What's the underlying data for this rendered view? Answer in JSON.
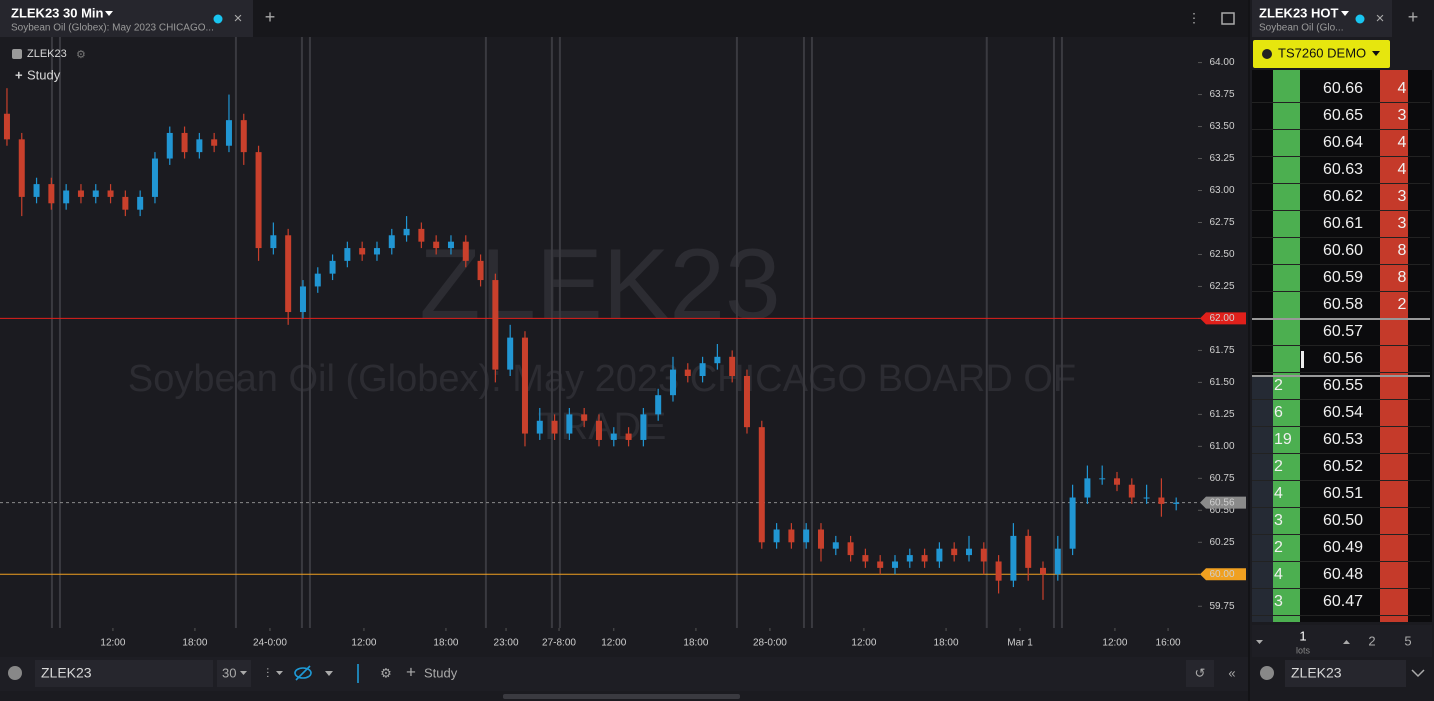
{
  "left_tab": {
    "title": "ZLEK23 30 Min",
    "subtitle": "Soybean Oil (Globex): May 2023 CHICAGO..."
  },
  "chart_data": {
    "type": "candlestick",
    "symbol": "ZLEK23",
    "study": "Study",
    "watermark_symbol": "ZLEK23",
    "watermark_name": [
      "Soybean Oil (Globex): May 2023 CHICAGO BOARD OF",
      "TRADE"
    ],
    "up_color": "#2196d3",
    "down_color": "#c9402c",
    "xlim": [
      -0.47,
      80.27
    ],
    "ylim": [
      59.58,
      64.2
    ],
    "yticks": [
      {
        "value": 64,
        "label": "64.00"
      },
      {
        "value": 63.75,
        "label": "63.75"
      },
      {
        "value": 63.5,
        "label": "63.50"
      },
      {
        "value": 63.25,
        "label": "63.25"
      },
      {
        "value": 63,
        "label": "63.00"
      },
      {
        "value": 62.75,
        "label": "62.75"
      },
      {
        "value": 62.5,
        "label": "62.50"
      },
      {
        "value": 62.25,
        "label": "62.25"
      },
      {
        "value": 62,
        "label": "62.00"
      },
      {
        "value": 61.75,
        "label": "61.75"
      },
      {
        "value": 61.5,
        "label": "61.50"
      },
      {
        "value": 61.25,
        "label": "61.25"
      },
      {
        "value": 61,
        "label": "61.00"
      },
      {
        "value": 60.75,
        "label": "60.75"
      },
      {
        "value": 60.5,
        "label": "60.50"
      },
      {
        "value": 60.25,
        "label": "60.25"
      },
      {
        "value": 60,
        "label": "60.00"
      },
      {
        "value": 59.75,
        "label": "59.75"
      }
    ],
    "xticks": [
      {
        "value": 7.16,
        "label": "12:00"
      },
      {
        "value": 12.7,
        "label": "18:00"
      },
      {
        "value": 17.77,
        "label": "24-0:00"
      },
      {
        "value": 24.12,
        "label": "12:00"
      },
      {
        "value": 29.66,
        "label": "18:00"
      },
      {
        "value": 33.72,
        "label": "23:00"
      },
      {
        "value": 37.3,
        "label": "27-8:00"
      },
      {
        "value": 41.0,
        "label": "12:00"
      },
      {
        "value": 46.55,
        "label": "18:00"
      },
      {
        "value": 51.55,
        "label": "28-0:00"
      },
      {
        "value": 57.9,
        "label": "12:00"
      },
      {
        "value": 63.45,
        "label": "18:00"
      },
      {
        "value": 68.45,
        "label": "Mar 1"
      },
      {
        "value": 74.86,
        "label": "12:00"
      },
      {
        "value": 78.45,
        "label": "16:00"
      }
    ],
    "session_lines": [
      3.04,
      3.58,
      15.47,
      19.93,
      20.47,
      32.36,
      36.82,
      37.36,
      49.32,
      53.85,
      54.39,
      66.2,
      70.74,
      71.28
    ],
    "levels": [
      {
        "value": 62,
        "label": "62.00",
        "color": "#e0201b"
      },
      {
        "value": 60,
        "label": "60.00",
        "color": "#f0a020"
      },
      {
        "value": 60.56,
        "label": "60.56",
        "color": "#8a8a8a"
      }
    ],
    "ohlc": [
      [
        63.6,
        63.8,
        63.35,
        63.4
      ],
      [
        63.4,
        63.45,
        62.8,
        62.95
      ],
      [
        62.95,
        63.1,
        62.9,
        63.05
      ],
      [
        63.05,
        63.1,
        62.85,
        62.9
      ],
      [
        62.9,
        63.05,
        62.85,
        63.0
      ],
      [
        63.0,
        63.05,
        62.9,
        62.95
      ],
      [
        62.95,
        63.05,
        62.9,
        63.0
      ],
      [
        63.0,
        63.05,
        62.9,
        62.95
      ],
      [
        62.95,
        63.0,
        62.8,
        62.85
      ],
      [
        62.85,
        63.0,
        62.8,
        62.95
      ],
      [
        62.95,
        63.3,
        62.9,
        63.25
      ],
      [
        63.25,
        63.5,
        63.2,
        63.45
      ],
      [
        63.45,
        63.5,
        63.25,
        63.3
      ],
      [
        63.3,
        63.45,
        63.25,
        63.4
      ],
      [
        63.4,
        63.45,
        63.3,
        63.35
      ],
      [
        63.35,
        63.75,
        63.3,
        63.55
      ],
      [
        63.55,
        63.6,
        63.2,
        63.3
      ],
      [
        63.3,
        63.35,
        62.45,
        62.55
      ],
      [
        62.55,
        62.75,
        62.5,
        62.65
      ],
      [
        62.65,
        62.7,
        61.95,
        62.05
      ],
      [
        62.05,
        62.3,
        62.0,
        62.25
      ],
      [
        62.25,
        62.4,
        62.2,
        62.35
      ],
      [
        62.35,
        62.5,
        62.3,
        62.45
      ],
      [
        62.45,
        62.6,
        62.4,
        62.55
      ],
      [
        62.55,
        62.6,
        62.45,
        62.5
      ],
      [
        62.5,
        62.6,
        62.45,
        62.55
      ],
      [
        62.55,
        62.7,
        62.5,
        62.65
      ],
      [
        62.65,
        62.8,
        62.6,
        62.7
      ],
      [
        62.7,
        62.75,
        62.55,
        62.6
      ],
      [
        62.6,
        62.65,
        62.5,
        62.55
      ],
      [
        62.55,
        62.65,
        62.5,
        62.6
      ],
      [
        62.6,
        62.65,
        62.4,
        62.45
      ],
      [
        62.45,
        62.5,
        62.25,
        62.3
      ],
      [
        62.3,
        62.35,
        61.5,
        61.6
      ],
      [
        61.6,
        61.95,
        61.55,
        61.85
      ],
      [
        61.85,
        61.9,
        61.0,
        61.1
      ],
      [
        61.1,
        61.3,
        61.05,
        61.2
      ],
      [
        61.2,
        61.25,
        61.05,
        61.1
      ],
      [
        61.1,
        61.3,
        61.05,
        61.25
      ],
      [
        61.25,
        61.3,
        61.15,
        61.2
      ],
      [
        61.2,
        61.25,
        61.0,
        61.05
      ],
      [
        61.05,
        61.15,
        61.0,
        61.1
      ],
      [
        61.1,
        61.15,
        61.0,
        61.05
      ],
      [
        61.05,
        61.3,
        61.0,
        61.25
      ],
      [
        61.25,
        61.45,
        61.2,
        61.4
      ],
      [
        61.4,
        61.7,
        61.35,
        61.6
      ],
      [
        61.6,
        61.65,
        61.5,
        61.55
      ],
      [
        61.55,
        61.7,
        61.5,
        61.65
      ],
      [
        61.65,
        61.8,
        61.6,
        61.7
      ],
      [
        61.7,
        61.75,
        61.5,
        61.55
      ],
      [
        61.55,
        61.6,
        61.1,
        61.15
      ],
      [
        61.15,
        61.2,
        60.2,
        60.25
      ],
      [
        60.25,
        60.4,
        60.2,
        60.35
      ],
      [
        60.35,
        60.4,
        60.2,
        60.25
      ],
      [
        60.25,
        60.4,
        60.2,
        60.35
      ],
      [
        60.35,
        60.4,
        60.1,
        60.2
      ],
      [
        60.2,
        60.3,
        60.15,
        60.25
      ],
      [
        60.25,
        60.3,
        60.1,
        60.15
      ],
      [
        60.15,
        60.2,
        60.05,
        60.1
      ],
      [
        60.1,
        60.15,
        60.0,
        60.05
      ],
      [
        60.05,
        60.15,
        60.0,
        60.1
      ],
      [
        60.1,
        60.2,
        60.05,
        60.15
      ],
      [
        60.15,
        60.2,
        60.05,
        60.1
      ],
      [
        60.1,
        60.25,
        60.05,
        60.2
      ],
      [
        60.2,
        60.25,
        60.1,
        60.15
      ],
      [
        60.15,
        60.3,
        60.1,
        60.2
      ],
      [
        60.2,
        60.25,
        60.0,
        60.1
      ],
      [
        60.1,
        60.15,
        59.85,
        59.95
      ],
      [
        59.95,
        60.4,
        59.9,
        60.3
      ],
      [
        60.3,
        60.35,
        59.95,
        60.05
      ],
      [
        60.05,
        60.1,
        59.8,
        60.0
      ],
      [
        60.0,
        60.3,
        59.95,
        60.2
      ],
      [
        60.2,
        60.7,
        60.15,
        60.6
      ],
      [
        60.6,
        60.85,
        60.55,
        60.75
      ],
      [
        60.75,
        60.85,
        60.7,
        60.75
      ],
      [
        60.75,
        60.8,
        60.65,
        60.7
      ],
      [
        60.7,
        60.75,
        60.55,
        60.6
      ],
      [
        60.6,
        60.7,
        60.55,
        60.6
      ],
      [
        60.6,
        60.75,
        60.45,
        60.55
      ],
      [
        60.55,
        60.6,
        60.5,
        60.56
      ]
    ]
  },
  "bottom_bar": {
    "symbol": "ZLEK23",
    "interval": 30,
    "study": "Study"
  },
  "dom": {
    "title": "ZLEK23 HOT",
    "subtitle": "Soybean Oil (Glo...",
    "account": "TS7260 DEMO",
    "rows": [
      {
        "price": "60.66",
        "ask": 4
      },
      {
        "price": "60.65",
        "ask": 3
      },
      {
        "price": "60.64",
        "ask": 4
      },
      {
        "price": "60.63",
        "ask": 4
      },
      {
        "price": "60.62",
        "ask": 3
      },
      {
        "price": "60.61",
        "ask": 3
      },
      {
        "price": "60.60",
        "ask": 8
      },
      {
        "price": "60.59",
        "ask": 8
      },
      {
        "price": "60.58",
        "ask": 2
      },
      {
        "price": "60.57"
      },
      {
        "price": "60.56"
      },
      {
        "price": "60.55",
        "bid": 2
      },
      {
        "price": "60.54",
        "bid": 6
      },
      {
        "price": "60.53",
        "bid": 19
      },
      {
        "price": "60.52",
        "bid": 2
      },
      {
        "price": "60.51",
        "bid": 4
      },
      {
        "price": "60.50",
        "bid": 3
      },
      {
        "price": "60.49",
        "bid": 2
      },
      {
        "price": "60.48",
        "bid": 4
      },
      {
        "price": "60.47",
        "bid": 3
      }
    ],
    "lots_value": 1,
    "lots_label": "lots",
    "presets": [
      2,
      5
    ],
    "symbol": "ZLEK23"
  }
}
